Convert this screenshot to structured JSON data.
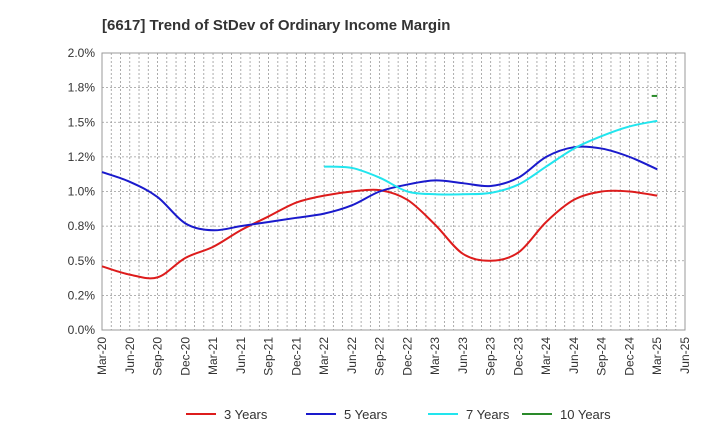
{
  "chart_data": {
    "type": "line",
    "title": "[6617]  Trend of StDev of Ordinary Income Margin",
    "xlabel": "",
    "ylabel": "",
    "ylim": [
      0,
      2.0
    ],
    "yticks": [
      "0.0%",
      "0.2%",
      "0.5%",
      "0.8%",
      "1.0%",
      "1.2%",
      "1.5%",
      "1.8%",
      "2.0%"
    ],
    "xticks": [
      "Mar-20",
      "Jun-20",
      "Sep-20",
      "Dec-20",
      "Mar-21",
      "Jun-21",
      "Sep-21",
      "Dec-21",
      "Mar-22",
      "Jun-22",
      "Sep-22",
      "Dec-22",
      "Mar-23",
      "Jun-23",
      "Sep-23",
      "Dec-23",
      "Mar-24",
      "Jun-24",
      "Sep-24",
      "Dec-24",
      "Mar-25",
      "Jun-25"
    ],
    "grid": true,
    "legend_position": "bottom",
    "series": [
      {
        "name": "3 Years",
        "color": "#dd1c1c",
        "values": [
          0.46,
          0.4,
          0.38,
          0.52,
          0.6,
          0.72,
          0.82,
          0.92,
          0.97,
          1.0,
          1.01,
          0.94,
          0.76,
          0.55,
          0.5,
          0.56,
          0.78,
          0.94,
          1.0,
          1.0,
          0.97,
          null
        ]
      },
      {
        "name": "5 Years",
        "color": "#1a1acc",
        "values": [
          1.14,
          1.07,
          0.96,
          0.77,
          0.72,
          0.75,
          0.78,
          0.81,
          0.84,
          0.9,
          1.0,
          1.05,
          1.08,
          1.06,
          1.04,
          1.1,
          1.25,
          1.32,
          1.31,
          1.25,
          1.16,
          null
        ]
      },
      {
        "name": "7 Years",
        "color": "#22e5ee",
        "values": [
          null,
          null,
          null,
          null,
          null,
          null,
          null,
          null,
          1.18,
          1.17,
          1.1,
          1.0,
          0.98,
          0.98,
          0.99,
          1.05,
          1.18,
          1.31,
          1.4,
          1.47,
          1.51,
          null
        ]
      },
      {
        "name": "10 Years",
        "color": "#2a8a2a",
        "values": [
          null,
          null,
          null,
          null,
          null,
          null,
          null,
          null,
          null,
          null,
          null,
          null,
          null,
          null,
          null,
          null,
          null,
          null,
          null,
          null,
          1.69,
          null
        ],
        "extra_point": {
          "index": 19.8,
          "value": 1.69
        }
      }
    ]
  }
}
